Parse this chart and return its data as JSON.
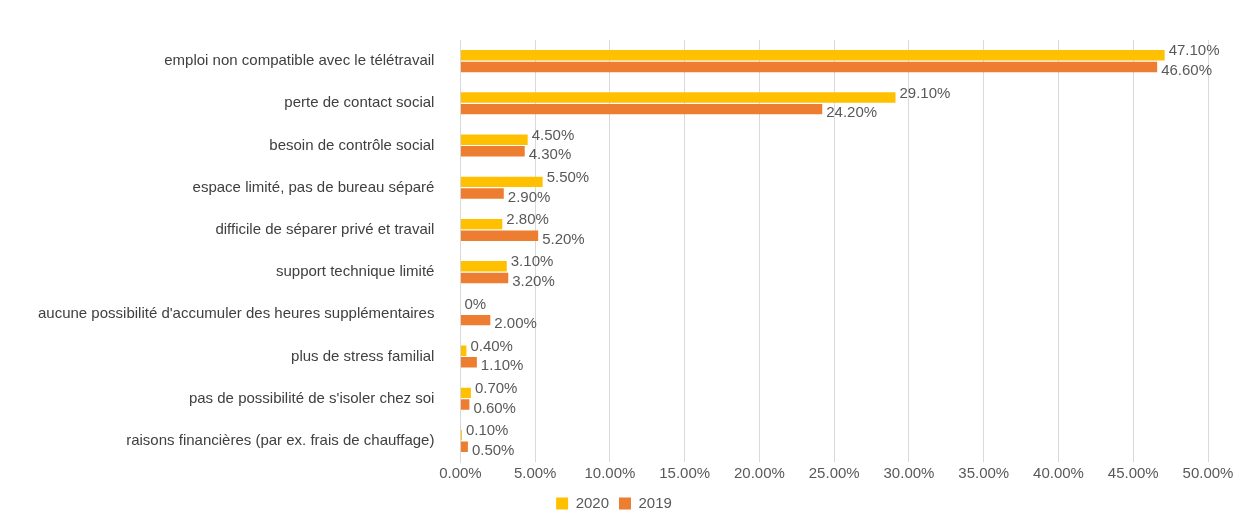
{
  "chart_data": {
    "type": "bar",
    "orientation": "horizontal",
    "categories": [
      "emploi non compatible avec le télétravail",
      "perte de contact social",
      "besoin de contrôle social",
      "espace limité, pas de bureau séparé",
      "difficile de séparer privé et travail",
      "support technique limité",
      "aucune possibilité d'accumuler des heures supplémentaires",
      "plus de stress familial",
      "pas de possibilité de s'isoler chez soi",
      "raisons financières (par ex. frais de chauffage)"
    ],
    "series": [
      {
        "name": "2020",
        "color": "#ffc000",
        "values": [
          47.1,
          29.1,
          4.5,
          5.5,
          2.8,
          3.1,
          0,
          0.4,
          0.7,
          0.1
        ],
        "value_labels": [
          "47.10%",
          "29.10%",
          "4.50%",
          "5.50%",
          "2.80%",
          "3.10%",
          "0%",
          "0.40%",
          "0.70%",
          "0.10%"
        ]
      },
      {
        "name": "2019",
        "color": "#ed7d31",
        "values": [
          46.6,
          24.2,
          4.3,
          2.9,
          5.2,
          3.2,
          2.0,
          1.1,
          0.6,
          0.5
        ],
        "value_labels": [
          "46.60%",
          "24.20%",
          "4.30%",
          "2.90%",
          "5.20%",
          "3.20%",
          "2.00%",
          "1.10%",
          "0.60%",
          "0.50%"
        ]
      }
    ],
    "xlim": [
      0,
      50
    ],
    "xticks": [
      {
        "value": 0,
        "label": "0.00%"
      },
      {
        "value": 5,
        "label": "5.00%"
      },
      {
        "value": 10,
        "label": "10.00%"
      },
      {
        "value": 15,
        "label": "15.00%"
      },
      {
        "value": 20,
        "label": "20.00%"
      },
      {
        "value": 25,
        "label": "25.00%"
      },
      {
        "value": 30,
        "label": "30.00%"
      },
      {
        "value": 35,
        "label": "35.00%"
      },
      {
        "value": 40,
        "label": "40.00%"
      },
      {
        "value": 45,
        "label": "45.00%"
      },
      {
        "value": 50,
        "label": "50.00%"
      }
    ],
    "grid": "x",
    "legend": "bottom"
  }
}
